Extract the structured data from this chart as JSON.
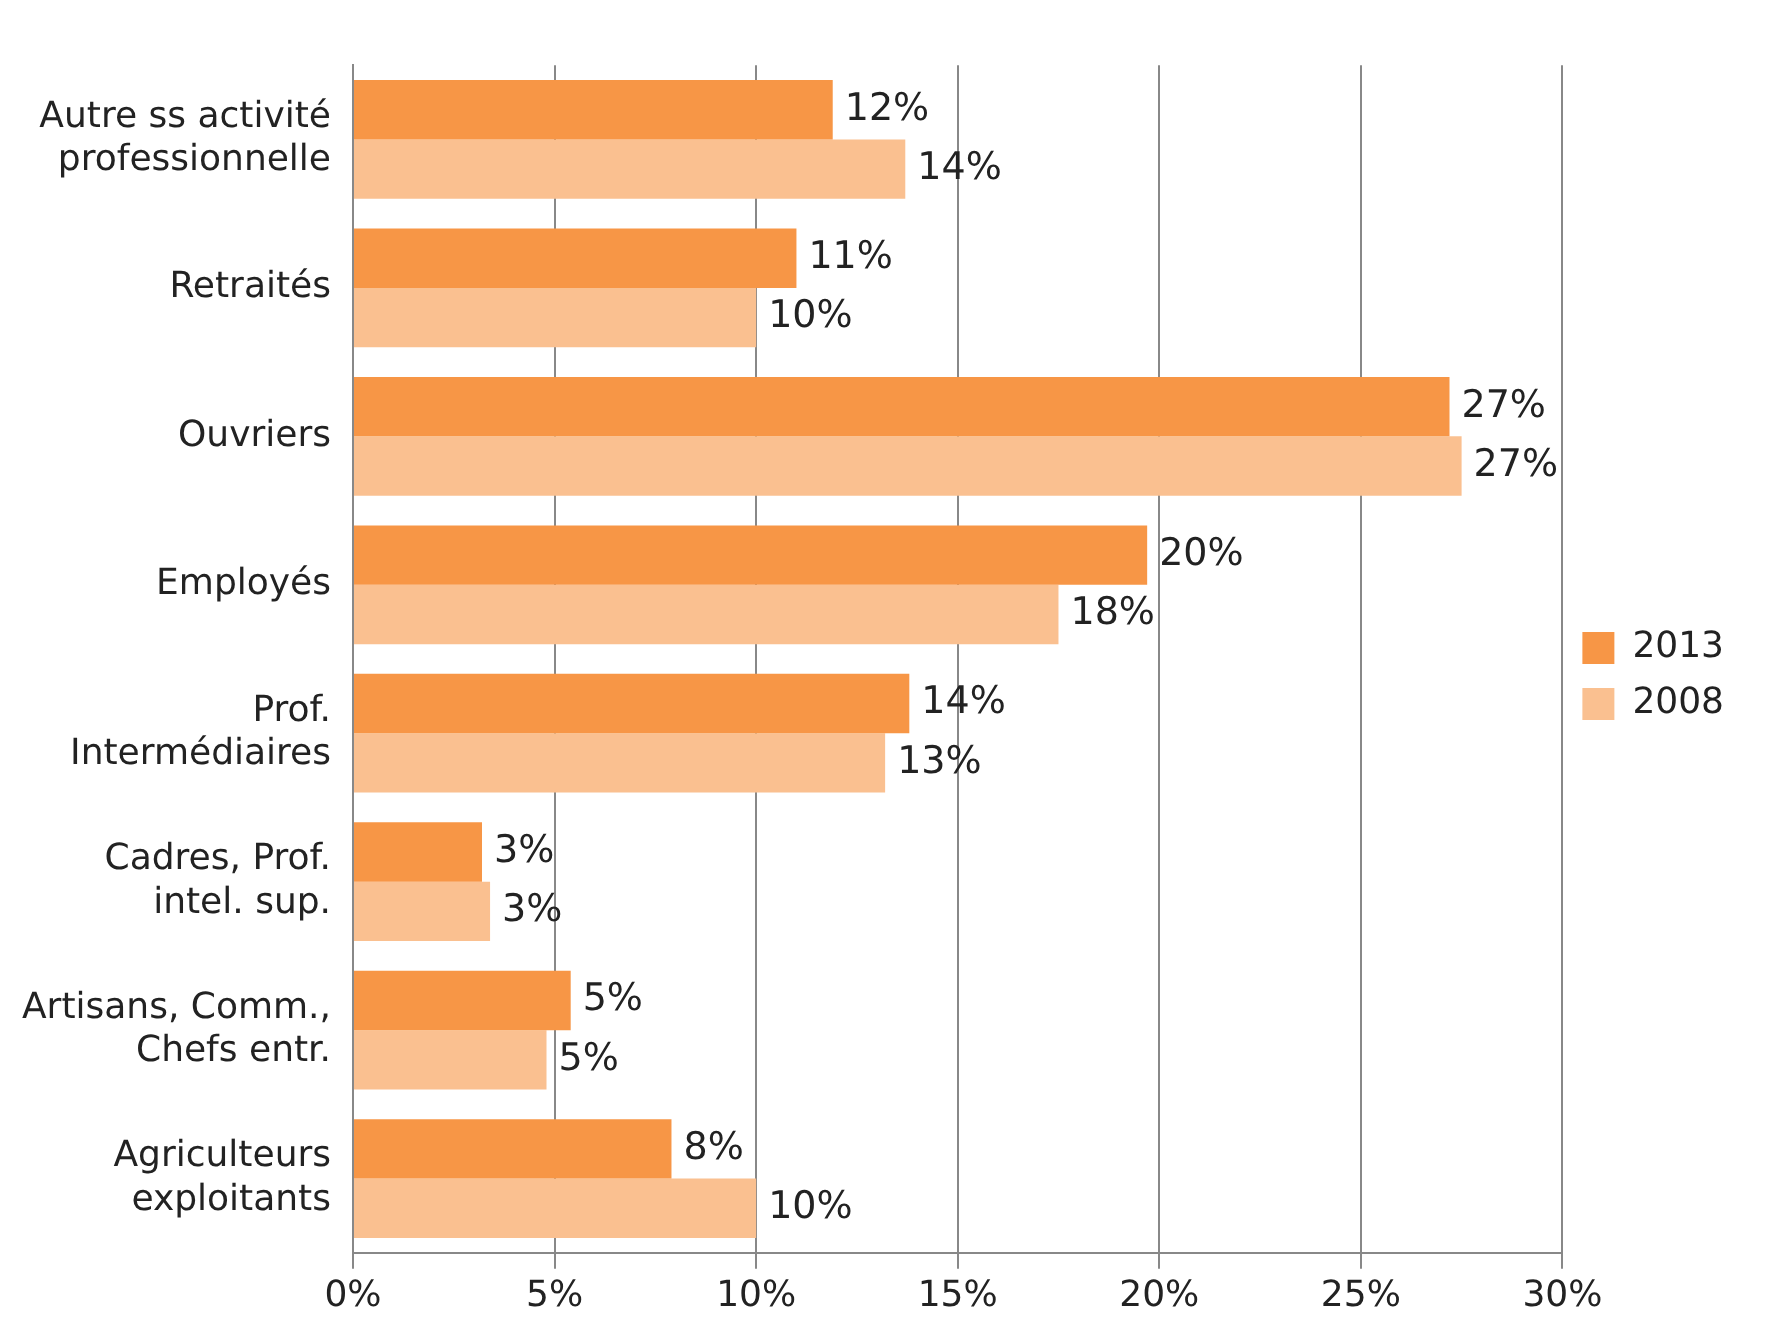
{
  "chart_data": {
    "type": "bar",
    "orientation": "horizontal",
    "categories": [
      "Autre ss activité\nprofessionnelle",
      "Retraités",
      "Ouvriers",
      "Employés",
      "Prof.\nIntermédiaires",
      "Cadres, Prof.\nintel. sup.",
      "Artisans, Comm.,\nChefs entr.",
      "Agriculteurs\nexploitants"
    ],
    "series": [
      {
        "name": "2013",
        "color": "#f79646",
        "values": [
          11.9,
          11.0,
          27.2,
          19.7,
          13.8,
          3.2,
          5.4,
          7.9
        ],
        "value_labels": [
          "12%",
          "11%",
          "27%",
          "20%",
          "14%",
          "3%",
          "5%",
          "8%"
        ]
      },
      {
        "name": "2008",
        "color": "#fac090",
        "values": [
          13.7,
          10.0,
          27.5,
          17.5,
          13.2,
          3.4,
          4.8,
          10.0
        ],
        "value_labels": [
          "14%",
          "10%",
          "27%",
          "18%",
          "13%",
          "3%",
          "5%",
          "10%"
        ]
      }
    ],
    "xlim": [
      0,
      30
    ],
    "xticks": [
      {
        "value": 0,
        "label": "0%"
      },
      {
        "value": 5,
        "label": "5%"
      },
      {
        "value": 10,
        "label": "10%"
      },
      {
        "value": 15,
        "label": "15%"
      },
      {
        "value": 20,
        "label": "20%"
      },
      {
        "value": 25,
        "label": "25%"
      },
      {
        "value": 30,
        "label": "30%"
      }
    ],
    "grid": "x",
    "legend": "right"
  }
}
